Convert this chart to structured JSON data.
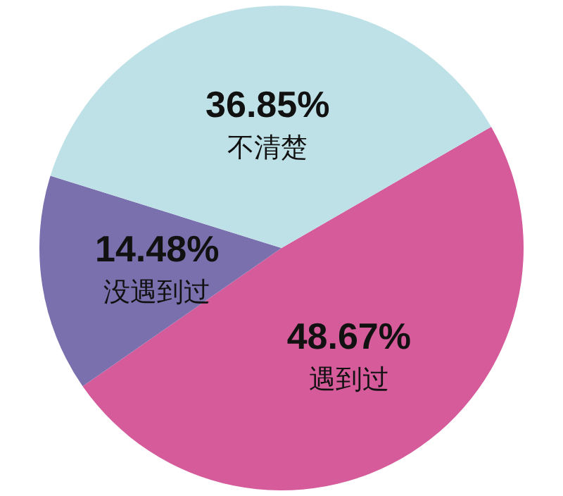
{
  "chart_data": {
    "type": "pie",
    "categories": [
      "遇到过",
      "没遇到过",
      "不清楚"
    ],
    "values": [
      48.67,
      14.48,
      36.85
    ],
    "value_labels": [
      "48.67%",
      "14.48%",
      "36.85%"
    ],
    "colors": [
      "#d55b9b",
      "#7b70ae",
      "#bee1e7"
    ]
  }
}
